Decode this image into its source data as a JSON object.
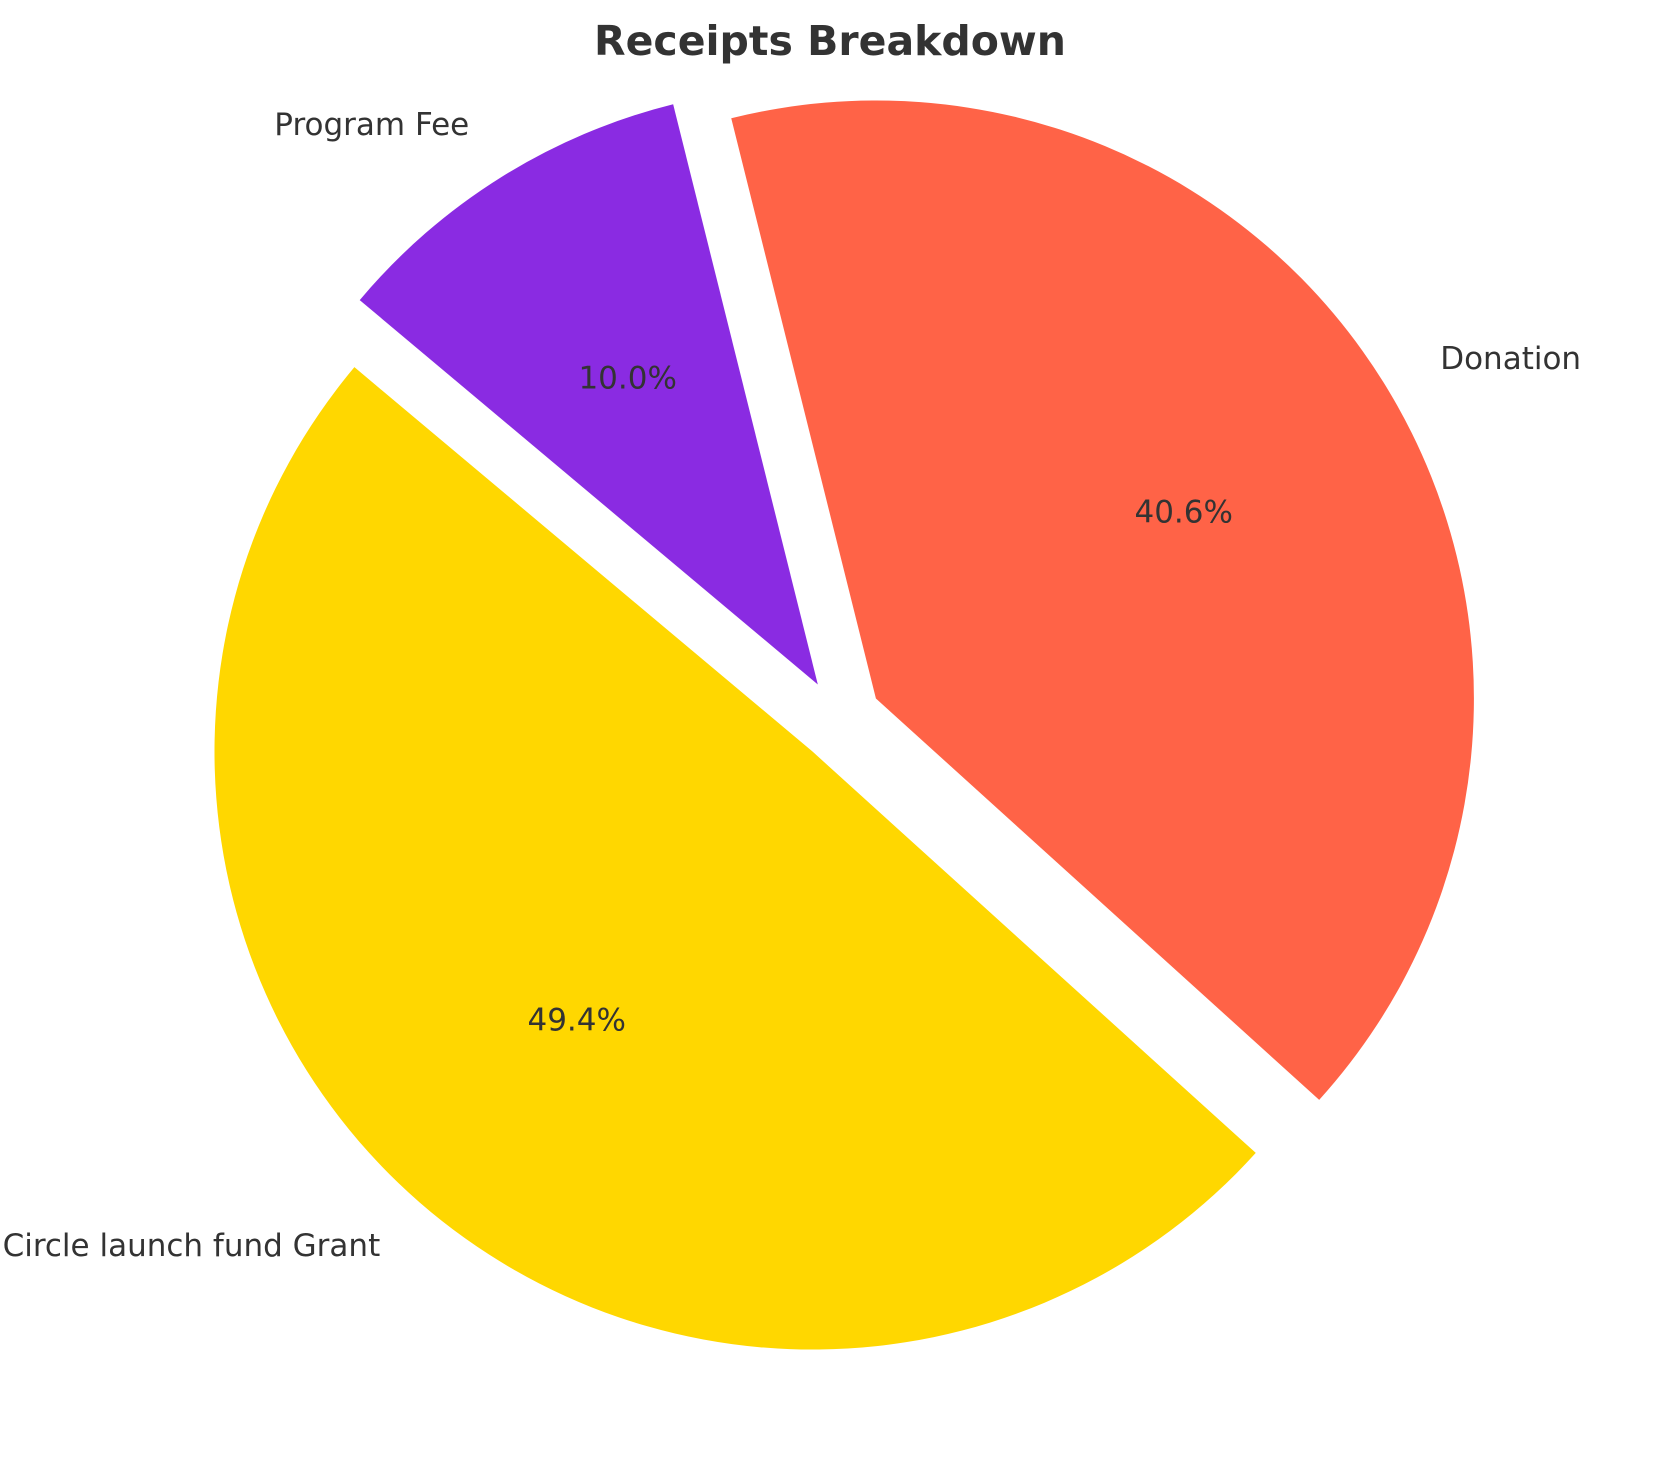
{
  "chart_data": {
    "type": "pie",
    "title": "Receipts Breakdown",
    "categories": [
      "Circle launch fund Grant",
      "Donation",
      "Program Fee"
    ],
    "values": [
      49.4,
      40.6,
      10.0
    ],
    "percent_labels": [
      "49.4%",
      "40.6%",
      "10.0%"
    ],
    "colors": [
      "#FFD700",
      "#FF6347",
      "#8A2BE2"
    ],
    "exploded": [
      true,
      true,
      true
    ],
    "legend": "none"
  }
}
